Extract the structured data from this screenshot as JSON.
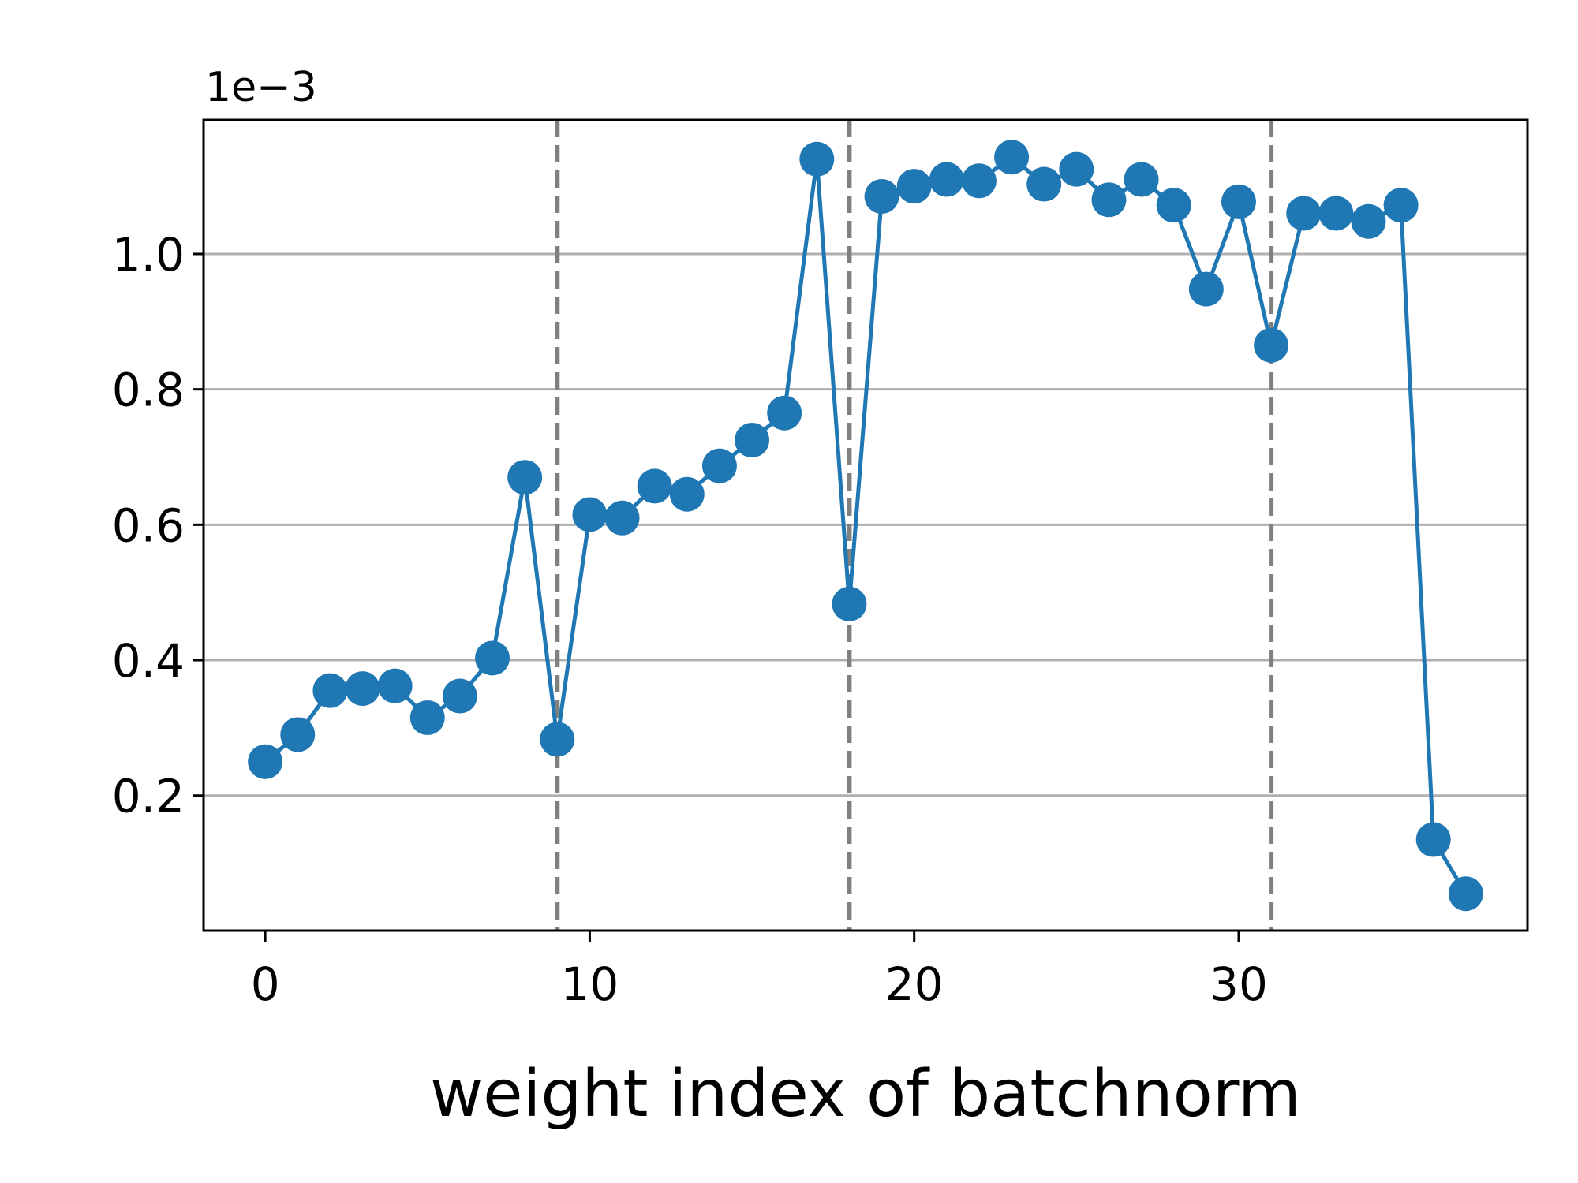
{
  "chart_data": {
    "type": "line",
    "title": "",
    "xlabel": "weight index of batchnorm",
    "ylabel": "",
    "y_offset_label": "1e−3",
    "xlim": [
      -1.9,
      38.9
    ],
    "ylim": [
      0.00048,
      1.198
    ],
    "x_ticks": [
      0,
      10,
      20,
      30
    ],
    "y_ticks": [
      0.2,
      0.4,
      0.6,
      0.8,
      1.0
    ],
    "x_tick_labels": [
      "0",
      "10",
      "20",
      "30"
    ],
    "y_tick_labels": [
      "0.2",
      "0.4",
      "0.6",
      "0.8",
      "1.0"
    ],
    "grid": "y-major",
    "vlines": [
      9,
      18,
      31
    ],
    "series": [
      {
        "color": "#1f77b4",
        "marker": "circle",
        "x": [
          0,
          1,
          2,
          3,
          4,
          5,
          6,
          7,
          8,
          9,
          10,
          11,
          12,
          13,
          14,
          15,
          16,
          17,
          18,
          19,
          20,
          21,
          22,
          23,
          24,
          25,
          26,
          27,
          28,
          29,
          30,
          31,
          32,
          33,
          34,
          35,
          36,
          37
        ],
        "y": [
          0.25,
          0.29,
          0.355,
          0.358,
          0.362,
          0.315,
          0.347,
          0.403,
          0.67,
          0.283,
          0.615,
          0.61,
          0.657,
          0.645,
          0.687,
          0.725,
          0.765,
          1.14,
          0.483,
          1.085,
          1.1,
          1.11,
          1.108,
          1.143,
          1.103,
          1.125,
          1.08,
          1.11,
          1.072,
          0.948,
          1.077,
          0.865,
          1.06,
          1.06,
          1.048,
          1.072,
          0.135,
          0.055
        ]
      }
    ]
  }
}
